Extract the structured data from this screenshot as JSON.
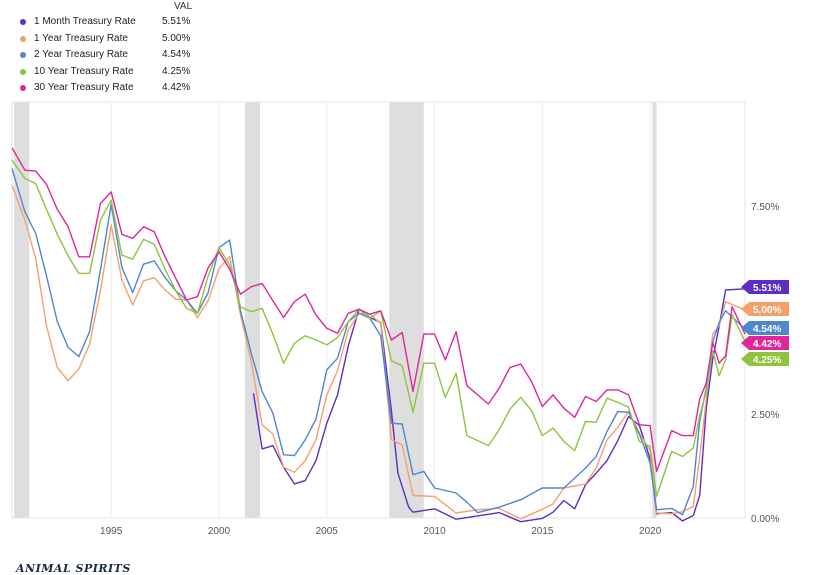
{
  "legend": {
    "header": "VAL",
    "items": [
      {
        "name": "1 Month Treasury Rate",
        "value": "5.51%",
        "color": "#5a2fc2"
      },
      {
        "name": "1 Year Treasury Rate",
        "value": "5.00%",
        "color": "#f5a06b"
      },
      {
        "name": "2 Year Treasury Rate",
        "value": "4.54%",
        "color": "#4f86d0"
      },
      {
        "name": "10 Year Treasury Rate",
        "value": "4.25%",
        "color": "#8fc43e"
      },
      {
        "name": "30 Year Treasury Rate",
        "value": "4.42%",
        "color": "#e0269a"
      }
    ]
  },
  "footer": {
    "logo": "ANIMAL SPIRITS"
  },
  "chart_data": {
    "type": "line",
    "x_ticks": [
      "1995",
      "2000",
      "2005",
      "2010",
      "2015",
      "2020"
    ],
    "y_ticks": [
      "0.00%",
      "2.50%",
      "7.50%"
    ],
    "ylim": [
      0,
      10
    ],
    "xlim": [
      1990.4,
      2024.4
    ],
    "grid": "vertical",
    "recession_bands": [
      [
        1990.5,
        1991.2
      ],
      [
        2001.2,
        2001.9
      ],
      [
        2007.9,
        2009.5
      ],
      [
        2020.1,
        2020.3
      ]
    ],
    "end_labels": [
      "5.51%",
      "5.00%",
      "4.54%",
      "4.42%",
      "4.25%"
    ],
    "series": [
      {
        "name": "1 Month Treasury Rate",
        "color": "#5a2fc2",
        "x": [
          2001.6,
          2002,
          2002.5,
          2003,
          2003.5,
          2004,
          2004.5,
          2005,
          2005.5,
          2006,
          2006.5,
          2007,
          2007.5,
          2008,
          2008.3,
          2008.8,
          2009,
          2010,
          2011,
          2012,
          2013,
          2014,
          2015,
          2015.5,
          2016,
          2016.5,
          2017,
          2017.5,
          2018,
          2018.5,
          2019,
          2019.5,
          2020,
          2020.3,
          2021,
          2021.5,
          2022,
          2022.3,
          2022.6,
          2022.9,
          2023.2,
          2023.5,
          2024.4
        ],
        "y": [
          3.0,
          1.7,
          1.7,
          1.1,
          0.9,
          0.9,
          1.3,
          2.4,
          3.0,
          4.1,
          4.9,
          4.9,
          4.7,
          2.5,
          1.2,
          0.3,
          0.1,
          0.1,
          0.05,
          0.05,
          0.05,
          0.03,
          0.03,
          0.1,
          0.3,
          0.3,
          0.8,
          1.0,
          1.5,
          1.9,
          2.4,
          2.1,
          1.5,
          0.1,
          0.05,
          0.05,
          0.1,
          0.5,
          2.5,
          3.9,
          4.6,
          5.4,
          5.51
        ]
      },
      {
        "name": "1 Year Treasury Rate",
        "color": "#f5a06b",
        "x": [
          1990.4,
          1991,
          1991.5,
          1992,
          1992.5,
          1993,
          1993.5,
          1994,
          1994.5,
          1995,
          1995.5,
          1996,
          1996.5,
          1997,
          1997.5,
          1998,
          1998.5,
          1999,
          1999.5,
          2000,
          2000.5,
          2001,
          2001.5,
          2002,
          2002.5,
          2003,
          2003.5,
          2004,
          2004.5,
          2005,
          2005.5,
          2006,
          2006.5,
          2007,
          2007.5,
          2008,
          2008.5,
          2009,
          2010,
          2011,
          2012,
          2013,
          2014,
          2015,
          2015.5,
          2016,
          2017,
          2017.5,
          2018,
          2018.5,
          2019,
          2019.5,
          2020,
          2020.3,
          2021,
          2021.5,
          2022,
          2022.3,
          2022.6,
          2022.9,
          2023.2,
          2023.5,
          2024.4
        ],
        "y": [
          8.0,
          7.2,
          6.2,
          4.5,
          3.7,
          3.3,
          3.5,
          4.3,
          5.5,
          7.0,
          5.6,
          5.2,
          5.7,
          5.7,
          5.6,
          5.3,
          5.2,
          4.7,
          5.3,
          6.0,
          6.2,
          5.0,
          3.8,
          2.2,
          1.9,
          1.3,
          1.1,
          1.3,
          2.0,
          3.0,
          3.5,
          4.4,
          5.0,
          4.9,
          4.6,
          2.0,
          1.8,
          0.5,
          0.4,
          0.2,
          0.2,
          0.15,
          0.1,
          0.25,
          0.3,
          0.6,
          0.9,
          1.2,
          1.8,
          2.3,
          2.6,
          2.0,
          1.5,
          0.2,
          0.1,
          0.07,
          0.4,
          1.5,
          2.8,
          4.3,
          4.7,
          5.2,
          5.0
        ]
      },
      {
        "name": "2 Year Treasury Rate",
        "color": "#4f86d0",
        "x": [
          1990.4,
          1991,
          1991.5,
          1992,
          1992.5,
          1993,
          1993.5,
          1994,
          1994.5,
          1995,
          1995.5,
          1996,
          1996.5,
          1997,
          1997.5,
          1998,
          1998.5,
          1999,
          1999.5,
          2000,
          2000.5,
          2001,
          2001.5,
          2002,
          2002.5,
          2003,
          2003.5,
          2004,
          2004.5,
          2005,
          2005.5,
          2006,
          2006.5,
          2007,
          2007.5,
          2008,
          2008.5,
          2009,
          2009.5,
          2010,
          2011,
          2011.5,
          2012,
          2013,
          2014,
          2015,
          2016,
          2017,
          2017.5,
          2018,
          2018.5,
          2019,
          2019.5,
          2020,
          2020.3,
          2021,
          2021.5,
          2022,
          2022.3,
          2022.6,
          2022.9,
          2023.2,
          2023.5,
          2024.4
        ],
        "y": [
          8.4,
          7.4,
          6.8,
          5.7,
          4.8,
          4.1,
          3.8,
          4.6,
          6.0,
          7.5,
          5.9,
          5.5,
          6.1,
          6.1,
          5.9,
          5.5,
          5.2,
          4.8,
          5.5,
          6.5,
          6.6,
          5.1,
          4.0,
          3.0,
          2.4,
          1.6,
          1.5,
          1.8,
          2.5,
          3.6,
          3.8,
          4.6,
          5.0,
          4.8,
          4.3,
          2.4,
          2.3,
          1.0,
          1.0,
          0.8,
          0.6,
          0.3,
          0.25,
          0.3,
          0.4,
          0.6,
          0.8,
          1.2,
          1.4,
          2.2,
          2.6,
          2.5,
          1.9,
          1.4,
          0.2,
          0.15,
          0.2,
          0.8,
          2.3,
          3.0,
          4.3,
          4.7,
          4.9,
          4.54
        ]
      },
      {
        "name": "10 Year Treasury Rate",
        "color": "#8fc43e",
        "x": [
          1990.4,
          1991,
          1991.5,
          1992,
          1992.5,
          1993,
          1993.5,
          1994,
          1994.5,
          1995,
          1995.5,
          1996,
          1996.5,
          1997,
          1997.5,
          1998,
          1998.5,
          1999,
          1999.5,
          2000,
          2000.5,
          2001,
          2001.5,
          2002,
          2002.5,
          2003,
          2003.5,
          2004,
          2004.5,
          2005,
          2005.5,
          2006,
          2006.5,
          2007,
          2007.5,
          2008,
          2008.5,
          2009,
          2009.5,
          2010,
          2010.5,
          2011,
          2011.5,
          2012,
          2012.5,
          2013,
          2013.5,
          2014,
          2014.5,
          2015,
          2015.5,
          2016,
          2016.5,
          2017,
          2017.5,
          2018,
          2018.5,
          2019,
          2019.5,
          2020,
          2020.3,
          2021,
          2021.5,
          2022,
          2022.3,
          2022.6,
          2022.9,
          2023.2,
          2023.5,
          2023.8,
          2024.4
        ],
        "y": [
          8.6,
          8.2,
          8.0,
          7.3,
          6.9,
          6.3,
          5.8,
          6.0,
          7.2,
          7.6,
          6.2,
          6.3,
          6.7,
          6.5,
          6.1,
          5.5,
          5.0,
          4.8,
          5.9,
          6.5,
          6.0,
          5.2,
          5.0,
          5.0,
          4.3,
          3.8,
          4.2,
          4.3,
          4.4,
          4.2,
          4.3,
          4.6,
          5.1,
          4.8,
          4.9,
          3.9,
          3.7,
          2.5,
          3.6,
          3.8,
          2.9,
          3.4,
          2.1,
          1.9,
          1.7,
          2.0,
          2.7,
          2.9,
          2.5,
          2.1,
          2.2,
          1.8,
          1.5,
          2.4,
          2.3,
          2.8,
          2.9,
          2.7,
          1.8,
          1.6,
          0.6,
          1.6,
          1.4,
          1.8,
          2.5,
          3.0,
          3.9,
          3.5,
          3.8,
          4.8,
          4.25
        ]
      },
      {
        "name": "30 Year Treasury Rate",
        "color": "#e0269a",
        "x": [
          1990.4,
          1991,
          1991.5,
          1992,
          1992.5,
          1993,
          1993.5,
          1994,
          1994.5,
          1995,
          1995.5,
          1996,
          1996.5,
          1997,
          1997.5,
          1998,
          1998.5,
          1999,
          1999.5,
          2000,
          2000.5,
          2001,
          2001.5,
          2002,
          2002.5,
          2003,
          2003.5,
          2004,
          2004.5,
          2005,
          2005.5,
          2006,
          2006.5,
          2007,
          2007.5,
          2008,
          2008.5,
          2009,
          2009.5,
          2010,
          2010.5,
          2011,
          2011.5,
          2012,
          2012.5,
          2013,
          2013.5,
          2014,
          2014.5,
          2015,
          2015.5,
          2016,
          2016.5,
          2017,
          2017.5,
          2018,
          2018.5,
          2019,
          2019.5,
          2020,
          2020.3,
          2021,
          2021.5,
          2022,
          2022.3,
          2022.6,
          2022.9,
          2023.2,
          2023.5,
          2023.8,
          2024.4
        ],
        "y": [
          8.9,
          8.4,
          8.3,
          7.9,
          7.5,
          7.0,
          6.2,
          6.4,
          7.6,
          7.8,
          6.7,
          6.8,
          7.0,
          6.8,
          6.4,
          5.8,
          5.2,
          5.2,
          6.1,
          6.4,
          5.9,
          5.5,
          5.6,
          5.6,
          5.1,
          4.9,
          5.2,
          5.3,
          5.0,
          4.6,
          4.4,
          4.8,
          5.1,
          4.9,
          4.9,
          4.4,
          4.5,
          3.0,
          4.3,
          4.5,
          3.8,
          4.4,
          3.3,
          3.0,
          2.7,
          3.0,
          3.7,
          3.7,
          3.2,
          2.8,
          3.0,
          2.6,
          2.3,
          3.0,
          2.8,
          3.0,
          3.2,
          3.0,
          2.2,
          2.1,
          1.2,
          2.1,
          1.9,
          2.1,
          2.9,
          3.2,
          4.1,
          3.8,
          3.9,
          5.0,
          4.42
        ]
      }
    ]
  }
}
